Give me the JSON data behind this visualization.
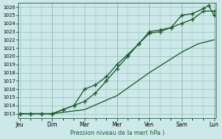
{
  "xlabel": "Pression niveau de la mer( hPa )",
  "background_color": "#cce8e8",
  "grid_color": "#99bbbb",
  "line_color": "#1a5c2a",
  "ylim": [
    1012.5,
    1026.5
  ],
  "ytick_min": 1013,
  "ytick_max": 1026,
  "day_labels": [
    "Jeu",
    "Dim",
    "Mar",
    "Mer",
    "Ven",
    "Sam",
    "Lun"
  ],
  "day_positions": [
    0,
    1,
    2,
    3,
    4,
    5,
    6
  ],
  "line1_x": [
    0,
    0.33,
    0.67,
    1.0,
    1.33,
    1.67,
    2.0,
    2.33,
    2.67,
    3.0,
    3.33,
    3.67,
    4.0,
    4.33,
    4.67,
    5.0,
    5.33,
    5.67,
    6.0
  ],
  "line1_y": [
    1013,
    1013,
    1013,
    1013,
    1013.5,
    1014,
    1016,
    1016.5,
    1017.5,
    1019,
    1020.2,
    1021.5,
    1022.8,
    1023,
    1023.5,
    1024,
    1024.5,
    1025.5,
    1025.5
  ],
  "line2_x": [
    0,
    0.33,
    0.67,
    1.0,
    1.33,
    1.67,
    2.0,
    2.33,
    2.67,
    3.0,
    3.33,
    3.67,
    4.0,
    4.33,
    4.67,
    5.0,
    5.33,
    5.67,
    5.83,
    6.0
  ],
  "line2_y": [
    1013,
    1013,
    1013,
    1013,
    1013.5,
    1014,
    1014.5,
    1015.5,
    1017,
    1018.5,
    1020,
    1021.5,
    1023,
    1023.2,
    1023.5,
    1025,
    1025.2,
    1025.8,
    1026.2,
    1025
  ],
  "line3_x": [
    0,
    1.0,
    2.0,
    3.0,
    4.0,
    5.0,
    5.5,
    6.0
  ],
  "line3_y": [
    1013,
    1013,
    1013.5,
    1015.2,
    1018,
    1020.5,
    1021.5,
    1022
  ],
  "marker": "+",
  "markersize": 4,
  "linewidth": 1.0
}
